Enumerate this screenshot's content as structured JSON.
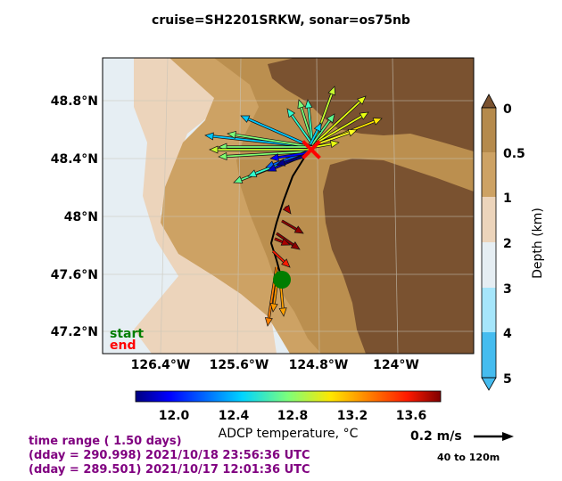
{
  "title": "cruise=SH2201SRKW,   sonar=os75nb",
  "map": {
    "lat_ticks": [
      "48.8°N",
      "48.4°N",
      "48°N",
      "47.6°N",
      "47.2°N"
    ],
    "lon_ticks": [
      "126.4°W",
      "125.6°W",
      "124.8°W",
      "124°W"
    ],
    "start_label": "start",
    "end_label": "end",
    "colors": {
      "land": "#7a5230",
      "shelf": "#bb8f4f",
      "slope": "#cda264",
      "deep1": "#ecd4bb",
      "deep2": "#e6eef3",
      "start": "#007d00",
      "end": "#ff0000"
    }
  },
  "depth_colorbar": {
    "label": "Depth (km)",
    "ticks": [
      "0",
      "0.5",
      "1",
      "2",
      "3",
      "4",
      "5"
    ],
    "colors": [
      "#b58a4c",
      "#cda264",
      "#ecd4bb",
      "#e6eef3",
      "#a6e6fb",
      "#45bcef"
    ]
  },
  "temp_colorbar": {
    "label": "ADCP temperature, °C",
    "ticks": [
      "12.0",
      "12.4",
      "12.8",
      "13.2",
      "13.6"
    ]
  },
  "scale": {
    "label": "0.2 m/s",
    "depth_range": "40 to 120m"
  },
  "info": {
    "line1": "time range ( 1.50 days)",
    "line2": "(dday = 290.998) 2021/10/18 23:56:36 UTC",
    "line3": "(dday = 289.501) 2021/10/17 12:01:36 UTC"
  }
}
